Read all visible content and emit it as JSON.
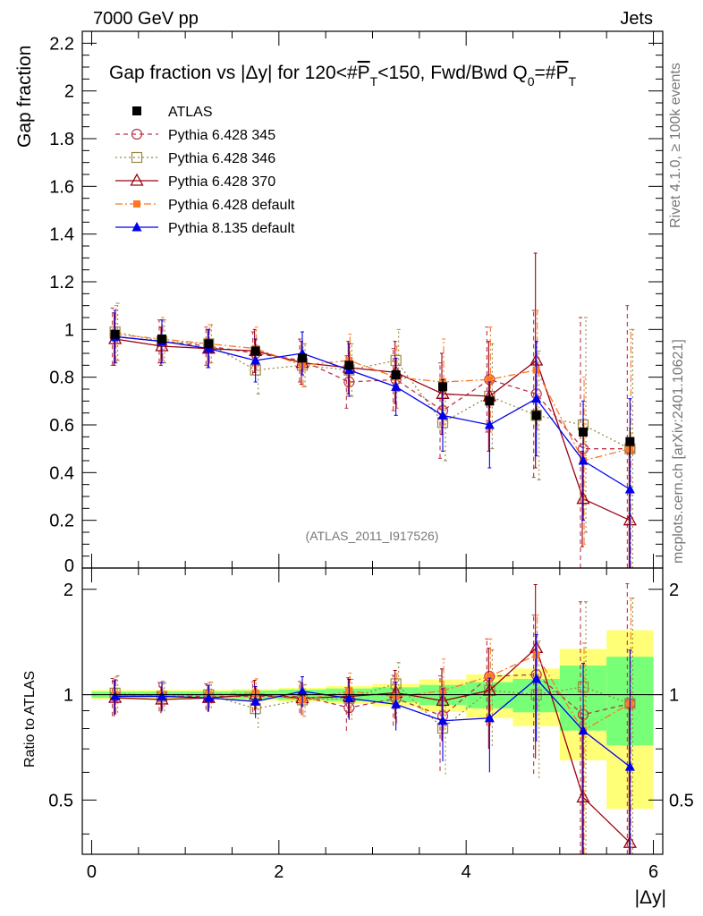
{
  "header": {
    "energy": "7000 GeV pp",
    "category": "Jets"
  },
  "side_labels": {
    "rivet": "Rivet 4.1.0, ≥ 100k events",
    "source": "mcplots.cern.ch [arXiv:2401.10621]"
  },
  "chart_data": {
    "type": "line",
    "title": "Gap fraction vs |Δy| for 120<#P̅T<150, Fwd/Bwd Q0=#P̅T",
    "title_parts": {
      "a": "Gap fraction vs |Δy| for 120<#",
      "p1": "P",
      "t1": "T",
      "b": "<150, Fwd/Bwd Q",
      "sub0": "0",
      "c": "=#",
      "p2": "P",
      "t2": "T"
    },
    "watermark": "(ATLAS_2011_I917526)",
    "xlabel": "|Δy|",
    "ylabel": "Gap fraction",
    "ratio_ylabel": "Ratio to ATLAS",
    "xlim": [
      -0.1,
      6.1
    ],
    "ylim": [
      0,
      2.25
    ],
    "ratio_ylim": [
      0.35,
      2.3
    ],
    "x_ticks": [
      0,
      2,
      4,
      6
    ],
    "y_ticks": [
      0.2,
      0.4,
      0.6,
      0.8,
      1,
      1.2,
      1.4,
      1.6,
      1.8,
      2,
      2.2
    ],
    "y_tick_labels": [
      "0.2",
      "0.4",
      "0.6",
      "0.8",
      "1",
      "1.2",
      "1.4",
      "1.6",
      "1.8",
      "2",
      "2.2"
    ],
    "y_zero_label": "0",
    "ratio_ticks": [
      0.5,
      1,
      2
    ],
    "ratio_tick_labels": [
      "0.5",
      "1",
      "2"
    ],
    "x": [
      0.25,
      0.75,
      1.25,
      1.75,
      2.25,
      2.75,
      3.25,
      3.75,
      4.25,
      4.75,
      5.25,
      5.75
    ],
    "data": {
      "name": "ATLAS",
      "values": [
        0.98,
        0.96,
        0.94,
        0.91,
        0.88,
        0.85,
        0.81,
        0.76,
        0.7,
        0.64,
        0.57,
        0.53
      ],
      "errors": [
        0.01,
        0.01,
        0.01,
        0.015,
        0.02,
        0.02,
        0.02,
        0.03,
        0.03,
        0.04,
        0.05,
        0.06
      ],
      "band_green": [
        0.02,
        0.02,
        0.02,
        0.025,
        0.03,
        0.035,
        0.04,
        0.05,
        0.06,
        0.07,
        0.12,
        0.15
      ],
      "band_yellow": [
        0.03,
        0.03,
        0.03,
        0.035,
        0.04,
        0.05,
        0.06,
        0.08,
        0.1,
        0.12,
        0.2,
        0.28
      ]
    },
    "series": [
      {
        "name": "Pythia 6.428 345",
        "color": "#bb3344",
        "dash": "5,4",
        "marker": "circle-open",
        "values": [
          0.97,
          0.95,
          0.93,
          0.9,
          0.87,
          0.78,
          0.79,
          0.66,
          0.79,
          0.73,
          0.5,
          0.5
        ],
        "errors": [
          0.12,
          0.09,
          0.08,
          0.09,
          0.09,
          0.11,
          0.13,
          0.2,
          0.22,
          0.35,
          0.55,
          0.6
        ]
      },
      {
        "name": "Pythia 6.428 346",
        "color": "#998844",
        "dash": "2,3",
        "marker": "square-open",
        "values": [
          0.99,
          0.95,
          0.94,
          0.83,
          0.85,
          0.83,
          0.87,
          0.61,
          0.72,
          0.64,
          0.6,
          0.5
        ],
        "errors": [
          0.12,
          0.09,
          0.08,
          0.1,
          0.09,
          0.11,
          0.13,
          0.16,
          0.22,
          0.27,
          0.45,
          0.5
        ]
      },
      {
        "name": "Pythia 6.428 370",
        "color": "#990011",
        "dash": "",
        "marker": "triangle-open",
        "values": [
          0.96,
          0.93,
          0.92,
          0.91,
          0.86,
          0.84,
          0.82,
          0.73,
          0.72,
          0.87,
          0.29,
          0.2
        ],
        "errors": [
          0.11,
          0.08,
          0.08,
          0.09,
          0.09,
          0.11,
          0.13,
          0.17,
          0.23,
          0.45,
          0.2,
          0.3
        ]
      },
      {
        "name": "Pythia 6.428 default",
        "color": "#ff7722",
        "dash": "8,3,2,3",
        "marker": "square-filled",
        "values": [
          0.98,
          0.96,
          0.94,
          0.92,
          0.85,
          0.87,
          0.8,
          0.78,
          0.79,
          0.83,
          0.45,
          0.5
        ],
        "errors": [
          0.12,
          0.09,
          0.08,
          0.09,
          0.09,
          0.11,
          0.13,
          0.18,
          0.22,
          0.25,
          0.35,
          0.5
        ]
      },
      {
        "name": "Pythia 8.135 default",
        "color": "#0000ee",
        "dash": "",
        "marker": "triangle-filled",
        "values": [
          0.97,
          0.95,
          0.92,
          0.87,
          0.9,
          0.83,
          0.76,
          0.64,
          0.6,
          0.71,
          0.45,
          0.33
        ],
        "errors": [
          0.11,
          0.09,
          0.08,
          0.09,
          0.09,
          0.11,
          0.12,
          0.15,
          0.18,
          0.24,
          0.25,
          0.38
        ]
      }
    ]
  }
}
